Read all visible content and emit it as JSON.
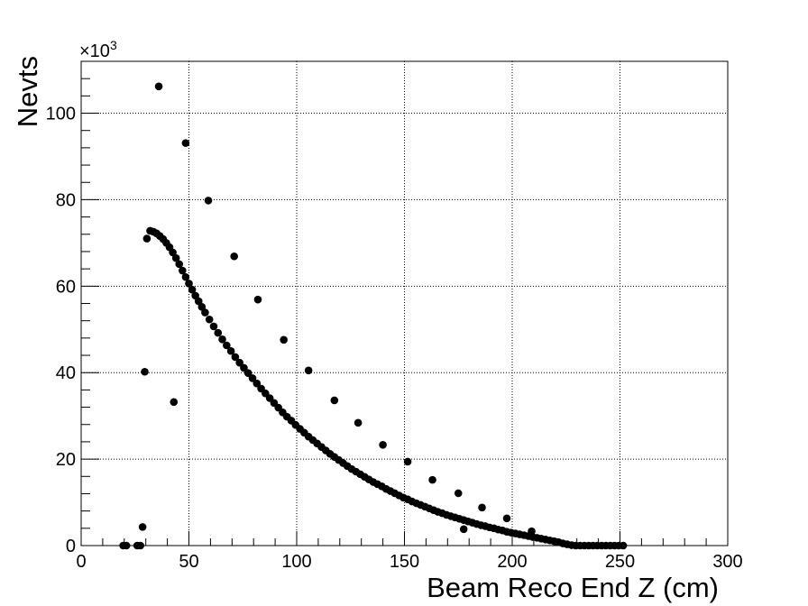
{
  "chart_data": {
    "type": "scatter",
    "title": "",
    "xlabel": "Beam Reco End Z (cm)",
    "ylabel": "Nevts",
    "y_multiplier": "×10",
    "y_multiplier_exp": "3",
    "xlim": [
      0,
      300
    ],
    "ylim": [
      0,
      112
    ],
    "x_ticks": [
      0,
      50,
      100,
      150,
      200,
      250,
      300
    ],
    "y_ticks": [
      0,
      20,
      40,
      60,
      80,
      100
    ],
    "grid": true,
    "marker_color": "#000000",
    "series": [
      {
        "values_note_unit": "thousands",
        "points": [
          [
            19.5,
            0
          ],
          [
            21.0,
            0
          ],
          [
            26.0,
            0
          ],
          [
            27.5,
            0
          ],
          [
            28.5,
            4.3
          ],
          [
            29.5,
            40.2
          ],
          [
            30.5,
            71.0
          ],
          [
            36.0,
            106.2
          ],
          [
            43.0,
            33.2
          ],
          [
            48.5,
            93.1
          ],
          [
            59.0,
            79.8
          ],
          [
            71.0,
            66.9
          ],
          [
            82.0,
            56.9
          ],
          [
            94.0,
            47.6
          ],
          [
            105.5,
            40.5
          ],
          [
            117.5,
            33.6
          ],
          [
            128.5,
            28.4
          ],
          [
            140.0,
            23.3
          ],
          [
            151.5,
            19.4
          ],
          [
            163.0,
            15.2
          ],
          [
            175.0,
            12.1
          ],
          [
            177.5,
            3.8
          ],
          [
            186.0,
            8.8
          ],
          [
            197.5,
            6.3
          ],
          [
            209.0,
            3.3
          ],
          [
            32.0,
            72.8
          ],
          [
            33.5,
            72.6
          ],
          [
            35.0,
            72.2
          ],
          [
            36.5,
            71.6
          ],
          [
            38.0,
            70.9
          ],
          [
            39.5,
            70.0
          ],
          [
            41.0,
            69.0
          ],
          [
            42.5,
            67.8
          ],
          [
            44.0,
            66.5
          ],
          [
            45.5,
            65.1
          ],
          [
            47.0,
            63.6
          ],
          [
            48.5,
            62.1
          ],
          [
            50.0,
            60.6
          ],
          [
            51.5,
            59.2
          ],
          [
            53.0,
            57.8
          ],
          [
            54.5,
            56.5
          ],
          [
            56.0,
            55.2
          ],
          [
            57.5,
            53.9
          ],
          [
            59.5,
            52.3
          ],
          [
            61.5,
            50.7
          ],
          [
            63.5,
            49.2
          ],
          [
            65.5,
            47.7
          ],
          [
            67.5,
            46.3
          ],
          [
            69.5,
            45.0
          ],
          [
            71.5,
            43.6
          ],
          [
            73.5,
            42.3
          ],
          [
            75.5,
            41.1
          ],
          [
            77.5,
            39.9
          ],
          [
            79.5,
            38.7
          ],
          [
            81.5,
            37.5
          ],
          [
            83.5,
            36.3
          ],
          [
            85.5,
            35.2
          ],
          [
            87.5,
            34.1
          ],
          [
            89.5,
            33.0
          ],
          [
            91.5,
            31.9
          ],
          [
            93.5,
            30.8
          ],
          [
            95.5,
            29.8
          ],
          [
            97.5,
            28.9
          ],
          [
            99.5,
            27.9
          ],
          [
            101.5,
            27.0
          ],
          [
            103.5,
            26.1
          ],
          [
            105.5,
            25.2
          ],
          [
            107.5,
            24.4
          ],
          [
            109.5,
            23.6
          ],
          [
            111.5,
            22.8
          ],
          [
            113.5,
            22.0
          ],
          [
            115.5,
            21.2
          ],
          [
            117.5,
            20.5
          ],
          [
            119.5,
            19.8
          ],
          [
            121.5,
            19.1
          ],
          [
            123.5,
            18.4
          ],
          [
            125.5,
            17.7
          ],
          [
            127.5,
            17.1
          ],
          [
            129.5,
            16.5
          ],
          [
            131.5,
            15.9
          ],
          [
            133.5,
            15.3
          ],
          [
            135.5,
            14.7
          ],
          [
            137.5,
            14.2
          ],
          [
            139.5,
            13.7
          ],
          [
            141.5,
            13.1
          ],
          [
            143.5,
            12.6
          ],
          [
            145.5,
            12.1
          ],
          [
            147.5,
            11.6
          ],
          [
            149.5,
            11.1
          ],
          [
            151.5,
            10.7
          ],
          [
            153.5,
            10.2
          ],
          [
            155.5,
            9.8
          ],
          [
            157.5,
            9.4
          ],
          [
            159.5,
            9.0
          ],
          [
            161.5,
            8.6
          ],
          [
            163.5,
            8.2
          ],
          [
            165.5,
            7.8
          ],
          [
            167.5,
            7.5
          ],
          [
            169.5,
            7.1
          ],
          [
            171.5,
            6.8
          ],
          [
            173.5,
            6.5
          ],
          [
            175.5,
            6.2
          ],
          [
            177.5,
            5.9
          ],
          [
            179.5,
            5.6
          ],
          [
            181.5,
            5.3
          ],
          [
            183.5,
            5.0
          ],
          [
            185.5,
            4.7
          ],
          [
            187.5,
            4.5
          ],
          [
            189.5,
            4.2
          ],
          [
            191.5,
            4.0
          ],
          [
            193.5,
            3.7
          ],
          [
            195.5,
            3.5
          ],
          [
            197.5,
            3.2
          ],
          [
            199.5,
            3.0
          ],
          [
            201.5,
            2.8
          ],
          [
            203.5,
            2.6
          ],
          [
            205.5,
            2.4
          ],
          [
            207.5,
            2.2
          ],
          [
            209.5,
            2.0
          ],
          [
            211.5,
            1.8
          ],
          [
            213.5,
            1.6
          ],
          [
            215.5,
            1.4
          ],
          [
            217.5,
            1.2
          ],
          [
            219.5,
            1.0
          ],
          [
            221.5,
            0.8
          ],
          [
            223.5,
            0.5
          ],
          [
            225.5,
            0.3
          ],
          [
            227.5,
            0.1
          ],
          [
            229.5,
            0
          ],
          [
            231.5,
            0
          ],
          [
            233.5,
            0
          ],
          [
            235.5,
            0
          ],
          [
            237.5,
            0
          ],
          [
            239.5,
            0
          ],
          [
            241.5,
            0
          ],
          [
            243.5,
            0
          ],
          [
            245.5,
            0
          ],
          [
            247.5,
            0
          ],
          [
            249.5,
            0
          ],
          [
            251.5,
            0
          ]
        ]
      }
    ]
  }
}
